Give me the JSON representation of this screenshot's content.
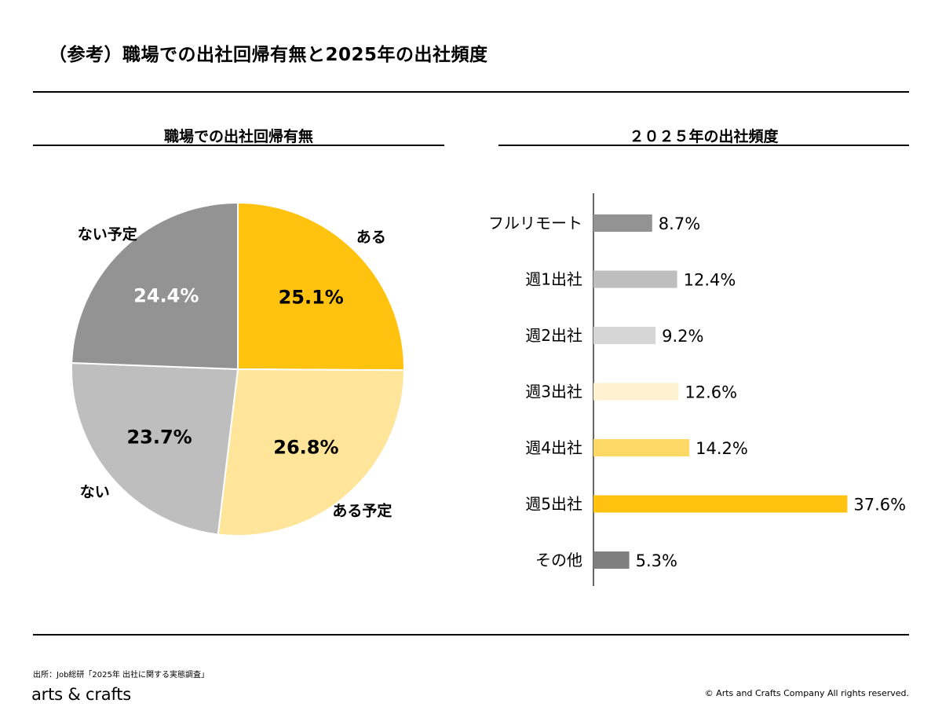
{
  "header": {
    "title": "（参考）職場での出社回帰有無と2025年の出社頻度"
  },
  "colors": {
    "pie": [
      "#FFC20E",
      "#FFE59A",
      "#BEBEBE",
      "#939393"
    ],
    "bars": [
      "#939393",
      "#BEBEBE",
      "#D6D6D6",
      "#FFF2D0",
      "#FFD966",
      "#FFC20E",
      "#7F7F7F"
    ]
  },
  "chart_data": [
    {
      "type": "pie",
      "title": "職場での出社回帰有無",
      "labels": [
        "ある",
        "ある予定",
        "ない",
        "ない予定"
      ],
      "values": [
        25.1,
        26.8,
        23.7,
        24.4
      ],
      "value_labels": [
        "25.1%",
        "26.8%",
        "23.7%",
        "24.4%"
      ],
      "start": "12 o'clock",
      "direction": "clockwise"
    },
    {
      "type": "bar",
      "orientation": "horizontal",
      "title": "２０２５年の出社頻度",
      "categories": [
        "フルリモート",
        "週1出社",
        "週2出社",
        "週3出社",
        "週4出社",
        "週5出社",
        "その他"
      ],
      "values": [
        8.7,
        12.4,
        9.2,
        12.6,
        14.2,
        37.6,
        5.3
      ],
      "value_labels": [
        "8.7%",
        "12.4%",
        "9.2%",
        "12.6%",
        "14.2%",
        "37.6%",
        "5.3%"
      ]
    }
  ],
  "footer": {
    "source": "出所：Job総研「2025年 出社に関する実態調査」",
    "logo": "arts & crafts",
    "copyright": "© Arts and Crafts Company All rights reserved."
  }
}
